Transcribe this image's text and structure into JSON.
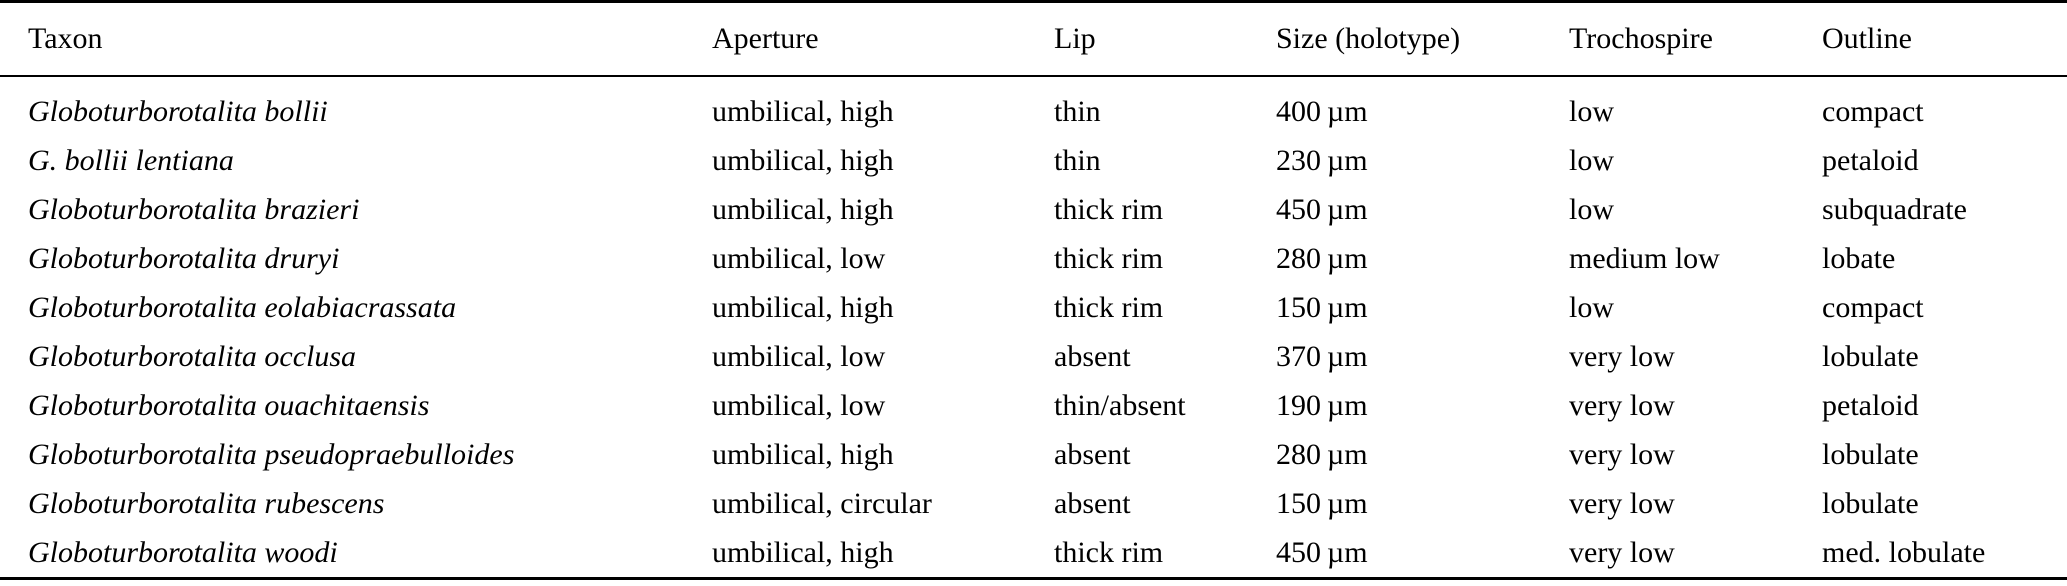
{
  "colors": {
    "background": "#ffffff",
    "text": "#000000",
    "rule": "#000000"
  },
  "table": {
    "columns": [
      "Taxon",
      "Aperture",
      "Lip",
      "Size (holotype)",
      "Trochospire",
      "Outline"
    ],
    "rows": [
      {
        "taxon": "Globoturborotalita bollii",
        "aperture": "umbilical, high",
        "lip": "thin",
        "size": "400 µm",
        "trochospire": "low",
        "outline": "compact"
      },
      {
        "taxon": "G. bollii lentiana",
        "aperture": "umbilical, high",
        "lip": "thin",
        "size": "230 µm",
        "trochospire": "low",
        "outline": "petaloid"
      },
      {
        "taxon": "Globoturborotalita brazieri",
        "aperture": "umbilical, high",
        "lip": "thick rim",
        "size": "450 µm",
        "trochospire": "low",
        "outline": "subquadrate"
      },
      {
        "taxon": "Globoturborotalita druryi",
        "aperture": "umbilical, low",
        "lip": "thick rim",
        "size": "280 µm",
        "trochospire": "medium low",
        "outline": "lobate"
      },
      {
        "taxon": "Globoturborotalita eolabiacrassata",
        "aperture": "umbilical, high",
        "lip": "thick rim",
        "size": "150 µm",
        "trochospire": "low",
        "outline": "compact"
      },
      {
        "taxon": "Globoturborotalita occlusa",
        "aperture": "umbilical, low",
        "lip": "absent",
        "size": "370 µm",
        "trochospire": "very low",
        "outline": "lobulate"
      },
      {
        "taxon": "Globoturborotalita ouachitaensis",
        "aperture": "umbilical, low",
        "lip": "thin/absent",
        "size": "190 µm",
        "trochospire": "very low",
        "outline": "petaloid"
      },
      {
        "taxon": "Globoturborotalita pseudopraebulloides",
        "aperture": "umbilical, high",
        "lip": "absent",
        "size": "280 µm",
        "trochospire": "very low",
        "outline": "lobulate"
      },
      {
        "taxon": "Globoturborotalita rubescens",
        "aperture": "umbilical, circular",
        "lip": "absent",
        "size": "150 µm",
        "trochospire": "very low",
        "outline": "lobulate"
      },
      {
        "taxon": "Globoturborotalita woodi",
        "aperture": "umbilical, high",
        "lip": "thick rim",
        "size": "450 µm",
        "trochospire": "very low",
        "outline": "med. lobulate"
      }
    ]
  }
}
